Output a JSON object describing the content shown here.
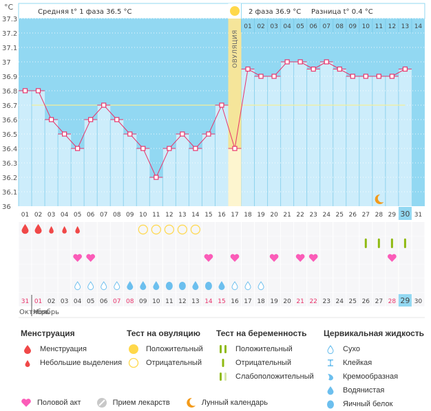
{
  "header": {
    "unit_label": "°C",
    "phase1_label": "Средняя t° 1 фаза",
    "phase1_value": "36.5 °C",
    "phase2_label": "2 фаза",
    "phase2_value": "36.9 °C",
    "diff_label": "Разница t°",
    "diff_value": "0.4 °C",
    "ovulation_label": "ОВУЛЯЦИЯ"
  },
  "colors": {
    "plot_bg": "#92d8f2",
    "bar_fill": "#cdedfb",
    "line": "#e8336a",
    "coverline": "#f4ef9a",
    "ovulation_band": "#f5e59a",
    "menstruation": "#f04848",
    "ovu_test": "#ffd84a",
    "pregnancy": "#8fba12",
    "heart": "#fb5cb8",
    "cervical": "#6cbfee",
    "moon": "#f39a1a",
    "red_day": "#e8336a",
    "today_bg": "#92d8f2"
  },
  "chart_data": {
    "type": "line",
    "title": "",
    "ylabel": "°C",
    "ylim": [
      36.0,
      37.3
    ],
    "yticks": [
      "36",
      "36.1",
      "36.2",
      "36.3",
      "36.4",
      "36.5",
      "36.6",
      "36.7",
      "36.8",
      "36.9",
      "37",
      "37.1",
      "37.2",
      "37.3"
    ],
    "grid": true,
    "cycle_days": [
      "01",
      "02",
      "03",
      "04",
      "05",
      "06",
      "07",
      "08",
      "09",
      "10",
      "11",
      "12",
      "13",
      "14",
      "15",
      "16",
      "17",
      "18",
      "19",
      "20",
      "21",
      "22",
      "23",
      "24",
      "25",
      "26",
      "27",
      "28",
      "29",
      "30",
      "31"
    ],
    "phase2_days": [
      "01",
      "02",
      "03",
      "04",
      "05",
      "06",
      "07",
      "08",
      "09",
      "10",
      "11",
      "12",
      "13",
      "14"
    ],
    "series": [
      {
        "name": "Базальная температура",
        "values": [
          36.8,
          36.8,
          36.6,
          36.5,
          36.4,
          36.6,
          36.7,
          36.6,
          36.5,
          36.4,
          36.2,
          36.4,
          36.5,
          36.4,
          36.5,
          36.7,
          36.4,
          36.95,
          36.9,
          36.9,
          37.0,
          37.0,
          36.95,
          37.0,
          36.95,
          36.9,
          36.9,
          36.9,
          36.9,
          36.95
        ]
      }
    ],
    "coverline": 36.7,
    "ovulation_day": 17,
    "today_day": 30,
    "moon_day": 28
  },
  "calendar": {
    "dates": [
      "31",
      "01",
      "02",
      "03",
      "04",
      "05",
      "06",
      "07",
      "08",
      "09",
      "10",
      "11",
      "12",
      "13",
      "14",
      "15",
      "16",
      "17",
      "18",
      "19",
      "20",
      "21",
      "22",
      "23",
      "24",
      "25",
      "26",
      "27",
      "28",
      "29",
      "30"
    ],
    "red_dates_idx": [
      0,
      1,
      7,
      8,
      14,
      15,
      21,
      22,
      28
    ],
    "today_idx": 29,
    "month_prev": "Октябрь",
    "month_next": "Ноябрь"
  },
  "rows": {
    "menstruation": {
      "heavy": [
        1,
        2
      ],
      "light": [
        3,
        4,
        5
      ]
    },
    "ovulation_test_negative": [
      10,
      11,
      12,
      13,
      14
    ],
    "pregnancy_test_negative": [
      27,
      28,
      29,
      30
    ],
    "intercourse": [
      5,
      6,
      15,
      17,
      20,
      22,
      23,
      29
    ],
    "cervical": {
      "dry": [
        5,
        6,
        7,
        8,
        17,
        18,
        19
      ],
      "watery": [
        9,
        10,
        11,
        14,
        16
      ],
      "eggwhite": [
        12,
        13,
        15
      ]
    }
  },
  "legend": {
    "menstruation": {
      "title": "Менструация",
      "items": [
        "Менструация",
        "Небольшие выделения"
      ]
    },
    "ovulation_test": {
      "title": "Тест на овуляцию",
      "items": [
        "Положительный",
        "Отрицательный"
      ]
    },
    "pregnancy_test": {
      "title": "Тест на беременность",
      "items": [
        "Положительный",
        "Отрицательный",
        "Слабоположительный"
      ]
    },
    "cervical": {
      "title": "Цервикальная жидкость",
      "items": [
        "Сухо",
        "Клейкая",
        "Кремообразная",
        "Водянистая",
        "Яичный белок"
      ]
    },
    "bottom": [
      "Половой акт",
      "Прием лекарств",
      "Лунный календарь"
    ]
  }
}
